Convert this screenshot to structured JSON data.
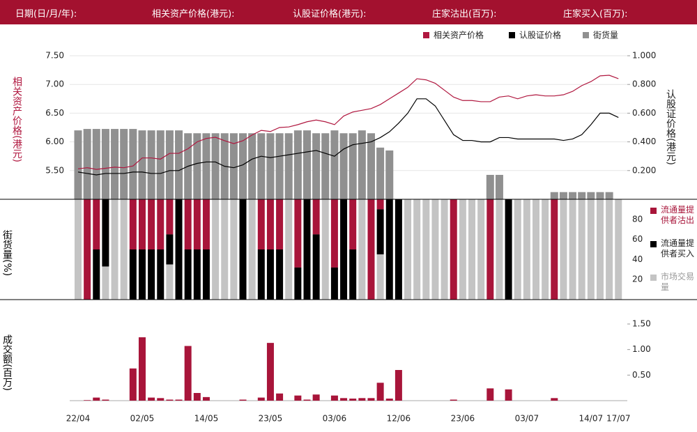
{
  "header": [
    "日期(日/月/年):",
    "相关资产价格(港元):",
    "认股证价格(港元):",
    "庄家沽出(百万):",
    "庄家买入(百万):"
  ],
  "chart_data": [
    {
      "type": "line",
      "ylabel": "相关资产价格(港元)",
      "y2label": "认股证价格(港元)",
      "ylim": [
        5.0,
        7.5
      ],
      "y2lim": [
        0,
        1.0
      ],
      "yticks": [
        {
          "value": 5.5,
          "label": "5.50"
        },
        {
          "value": 6.0,
          "label": "6.00"
        },
        {
          "value": 6.5,
          "label": "6.50"
        },
        {
          "value": 7.0,
          "label": "7.00"
        },
        {
          "value": 7.5,
          "label": "7.50"
        }
      ],
      "y2ticks": [
        {
          "value": 0.2,
          "label": "0.200"
        },
        {
          "value": 0.4,
          "label": "0.400"
        },
        {
          "value": 0.6,
          "label": "0.600"
        },
        {
          "value": 0.8,
          "label": "0.800"
        },
        {
          "value": 1.0,
          "label": "1.000"
        }
      ],
      "grid": true,
      "series": [
        {
          "name": "相关资产价格",
          "color": "#b0173f",
          "values": [
            5.53,
            5.55,
            5.52,
            5.54,
            5.56,
            5.55,
            5.58,
            5.72,
            5.72,
            5.7,
            5.8,
            5.8,
            5.88,
            6.0,
            6.06,
            6.08,
            6.02,
            5.97,
            6.02,
            6.12,
            6.2,
            6.18,
            6.25,
            6.26,
            6.3,
            6.35,
            6.38,
            6.35,
            6.3,
            6.45,
            6.52,
            6.55,
            6.58,
            6.65,
            6.75,
            6.85,
            6.95,
            7.1,
            7.08,
            7.02,
            6.9,
            6.78,
            6.72,
            6.72,
            6.7,
            6.7,
            6.78,
            6.8,
            6.75,
            6.8,
            6.82,
            6.8,
            6.8,
            6.82,
            6.88,
            6.98,
            7.05,
            7.15,
            7.16,
            7.1
          ]
        },
        {
          "name": "认股证价格",
          "color": "#000000",
          "axis": "y2",
          "values": [
            0.19,
            0.18,
            0.17,
            0.18,
            0.18,
            0.18,
            0.19,
            0.19,
            0.18,
            0.18,
            0.2,
            0.2,
            0.23,
            0.25,
            0.26,
            0.26,
            0.23,
            0.22,
            0.24,
            0.28,
            0.3,
            0.29,
            0.3,
            0.31,
            0.32,
            0.33,
            0.34,
            0.32,
            0.3,
            0.35,
            0.38,
            0.39,
            0.4,
            0.43,
            0.47,
            0.53,
            0.6,
            0.7,
            0.7,
            0.65,
            0.55,
            0.45,
            0.41,
            0.41,
            0.4,
            0.4,
            0.43,
            0.43,
            0.42,
            0.42,
            0.42,
            0.42,
            0.42,
            0.41,
            0.42,
            0.45,
            0.52,
            0.6,
            0.6,
            0.57
          ]
        },
        {
          "name": "街货量",
          "color": "#909090",
          "axis": "y2",
          "type": "bar",
          "values": [
            0.48,
            0.49,
            0.49,
            0.49,
            0.49,
            0.49,
            0.49,
            0.48,
            0.48,
            0.48,
            0.48,
            0.48,
            0.46,
            0.46,
            0.46,
            0.46,
            0.46,
            0.46,
            0.46,
            0.46,
            0.46,
            0.46,
            0.46,
            0.46,
            0.48,
            0.48,
            0.46,
            0.46,
            0.48,
            0.46,
            0.46,
            0.48,
            0.46,
            0.36,
            0.34,
            0,
            0,
            0,
            0,
            0,
            0,
            0,
            0,
            0,
            0,
            0.17,
            0.17,
            0,
            0,
            0,
            0,
            0,
            0.05,
            0.05,
            0.05,
            0.05,
            0.05,
            0.05,
            0.05,
            0
          ]
        }
      ]
    },
    {
      "type": "stacked_bar",
      "ylabel": "街货量(%)",
      "ylim": [
        0,
        100
      ],
      "yticks": [
        20,
        40,
        60,
        80
      ],
      "series": [
        {
          "name": "流通量提供者沽出",
          "color": "#a8153a",
          "values": [
            0,
            100,
            50,
            0,
            0,
            0,
            50,
            50,
            50,
            50,
            35,
            0,
            50,
            50,
            50,
            0,
            0,
            0,
            0,
            0,
            50,
            50,
            50,
            0,
            68,
            0,
            35,
            0,
            68,
            0,
            50,
            0,
            100,
            10,
            0,
            0,
            0,
            0,
            0,
            0,
            0,
            100,
            0,
            0,
            0,
            100,
            0,
            0,
            0,
            0,
            0,
            0,
            100,
            0,
            0,
            0,
            0,
            0,
            0,
            0
          ]
        },
        {
          "name": "流通量提供者买入",
          "color": "#000000",
          "values": [
            0,
            0,
            50,
            67,
            0,
            0,
            50,
            50,
            50,
            50,
            30,
            100,
            50,
            50,
            50,
            0,
            0,
            0,
            100,
            0,
            50,
            50,
            50,
            0,
            32,
            100,
            65,
            0,
            32,
            100,
            50,
            0,
            0,
            45,
            100,
            100,
            0,
            0,
            0,
            0,
            0,
            0,
            0,
            0,
            0,
            0,
            0,
            100,
            0,
            0,
            0,
            0,
            0,
            0,
            0,
            0,
            0,
            0,
            0,
            0
          ]
        },
        {
          "name": "市场交易量",
          "color": "#c4c4c4",
          "values": [
            100,
            0,
            0,
            33,
            100,
            100,
            0,
            0,
            0,
            0,
            35,
            0,
            0,
            0,
            0,
            100,
            100,
            100,
            0,
            100,
            0,
            0,
            0,
            100,
            0,
            0,
            0,
            100,
            0,
            0,
            0,
            100,
            0,
            45,
            0,
            0,
            100,
            100,
            100,
            100,
            100,
            0,
            100,
            100,
            100,
            0,
            100,
            0,
            100,
            100,
            100,
            100,
            0,
            100,
            100,
            100,
            100,
            100,
            100,
            100
          ]
        }
      ]
    },
    {
      "type": "bar",
      "ylabel": "成交额(百万)",
      "ylim": [
        0,
        1.5
      ],
      "yticks": [
        {
          "value": 0.5,
          "label": "0.50"
        },
        {
          "value": 1.0,
          "label": "1.00"
        },
        {
          "value": 1.5,
          "label": "1.50"
        }
      ],
      "color": "#a8153a",
      "categories": [
        "22/04",
        null,
        null,
        null,
        null,
        null,
        null,
        "02/05",
        null,
        null,
        null,
        null,
        null,
        null,
        "14/05",
        null,
        null,
        null,
        null,
        null,
        null,
        "23/05",
        null,
        null,
        null,
        null,
        null,
        null,
        "03/06",
        null,
        null,
        null,
        null,
        null,
        null,
        "12/06",
        null,
        null,
        null,
        null,
        null,
        null,
        "23/06",
        null,
        null,
        null,
        null,
        null,
        null,
        "03/07",
        null,
        null,
        null,
        null,
        null,
        null,
        "14/07",
        null,
        null,
        "17/07"
      ],
      "values": [
        0,
        0.01,
        0.06,
        0.02,
        0,
        0,
        0.63,
        1.24,
        0.06,
        0.05,
        0.02,
        0.02,
        1.07,
        0.15,
        0.07,
        0,
        0,
        0,
        0.02,
        0,
        0.06,
        1.13,
        0.14,
        0,
        0.1,
        0.02,
        0.12,
        0,
        0.1,
        0.05,
        0.04,
        0.05,
        0.05,
        0.35,
        0.04,
        0.6,
        0,
        0,
        0,
        0,
        0,
        0.02,
        0,
        0,
        0,
        0.24,
        0,
        0.22,
        0,
        0,
        0,
        0,
        0.05,
        0,
        0,
        0,
        0,
        0,
        0,
        0
      ]
    }
  ]
}
